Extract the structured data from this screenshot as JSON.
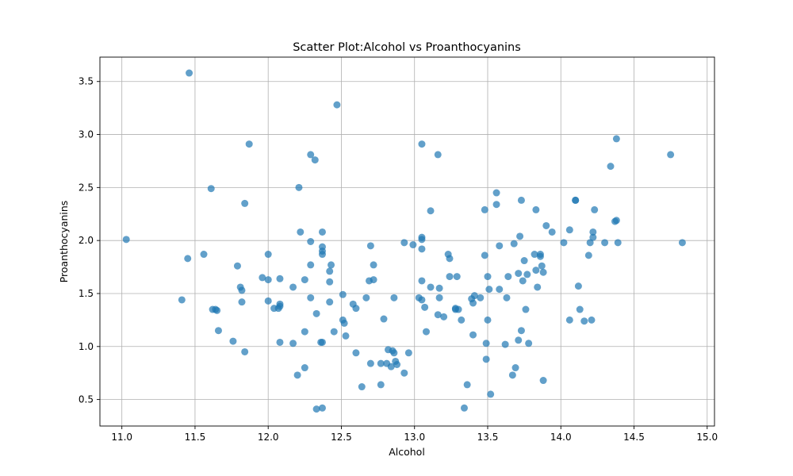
{
  "colors": {
    "marker": "#1f77b4",
    "grid": "#b0b0b0",
    "axes": "#000000"
  },
  "chart_data": {
    "type": "scatter",
    "title": "Scatter Plot:Alcohol vs Proanthocyanins",
    "xlabel": "Alcohol",
    "ylabel": "Proanthocyanins",
    "xlim": [
      10.85,
      15.05
    ],
    "ylim": [
      0.25,
      3.73
    ],
    "grid": true,
    "xticks": [
      "11.0",
      "11.5",
      "12.0",
      "12.5",
      "13.0",
      "13.5",
      "14.0",
      "14.5",
      "15.0"
    ],
    "yticks": [
      "0.5",
      "1.0",
      "1.5",
      "2.0",
      "2.5",
      "3.0",
      "3.5"
    ],
    "series": [
      {
        "points": [
          [
            11.03,
            2.01
          ],
          [
            11.41,
            1.44
          ],
          [
            11.45,
            1.83
          ],
          [
            11.46,
            3.58
          ],
          [
            11.56,
            1.87
          ],
          [
            11.61,
            2.49
          ],
          [
            11.62,
            1.35
          ],
          [
            11.64,
            1.35
          ],
          [
            11.65,
            1.34
          ],
          [
            11.66,
            1.15
          ],
          [
            11.76,
            1.05
          ],
          [
            11.79,
            1.76
          ],
          [
            11.81,
            1.56
          ],
          [
            11.82,
            1.53
          ],
          [
            11.82,
            1.42
          ],
          [
            11.84,
            2.35
          ],
          [
            11.84,
            0.95
          ],
          [
            11.87,
            2.91
          ],
          [
            11.96,
            1.65
          ],
          [
            12.0,
            1.87
          ],
          [
            12.0,
            1.63
          ],
          [
            12.0,
            1.43
          ],
          [
            12.04,
            1.36
          ],
          [
            12.07,
            1.36
          ],
          [
            12.08,
            1.38
          ],
          [
            12.08,
            1.4
          ],
          [
            12.08,
            1.64
          ],
          [
            12.08,
            1.04
          ],
          [
            12.17,
            1.56
          ],
          [
            12.17,
            1.03
          ],
          [
            12.2,
            0.73
          ],
          [
            12.21,
            2.5
          ],
          [
            12.22,
            2.08
          ],
          [
            12.25,
            1.63
          ],
          [
            12.25,
            1.14
          ],
          [
            12.25,
            0.8
          ],
          [
            12.29,
            2.81
          ],
          [
            12.29,
            1.99
          ],
          [
            12.29,
            1.77
          ],
          [
            12.29,
            1.46
          ],
          [
            12.32,
            2.76
          ],
          [
            12.33,
            1.31
          ],
          [
            12.33,
            0.41
          ],
          [
            12.36,
            1.04
          ],
          [
            12.37,
            1.04
          ],
          [
            12.37,
            0.42
          ],
          [
            12.37,
            2.08
          ],
          [
            12.37,
            1.94
          ],
          [
            12.37,
            1.9
          ],
          [
            12.37,
            1.87
          ],
          [
            12.42,
            1.71
          ],
          [
            12.42,
            1.61
          ],
          [
            12.42,
            1.42
          ],
          [
            12.43,
            1.77
          ],
          [
            12.45,
            1.14
          ],
          [
            12.47,
            3.28
          ],
          [
            12.51,
            1.49
          ],
          [
            12.51,
            1.25
          ],
          [
            12.52,
            1.22
          ],
          [
            12.53,
            1.1
          ],
          [
            12.58,
            1.4
          ],
          [
            12.6,
            1.36
          ],
          [
            12.6,
            0.94
          ],
          [
            12.64,
            0.62
          ],
          [
            12.67,
            1.46
          ],
          [
            12.69,
            1.62
          ],
          [
            12.7,
            1.95
          ],
          [
            12.7,
            0.84
          ],
          [
            12.72,
            1.77
          ],
          [
            12.72,
            1.63
          ],
          [
            12.77,
            0.84
          ],
          [
            12.77,
            0.64
          ],
          [
            12.79,
            1.26
          ],
          [
            12.81,
            0.84
          ],
          [
            12.82,
            0.97
          ],
          [
            12.84,
            0.81
          ],
          [
            12.85,
            0.96
          ],
          [
            12.86,
            1.46
          ],
          [
            12.86,
            0.94
          ],
          [
            12.87,
            0.86
          ],
          [
            12.88,
            0.83
          ],
          [
            12.93,
            1.98
          ],
          [
            12.93,
            0.75
          ],
          [
            12.96,
            0.94
          ],
          [
            12.99,
            1.96
          ],
          [
            13.03,
            1.46
          ],
          [
            13.05,
            2.91
          ],
          [
            13.05,
            2.03
          ],
          [
            13.05,
            2.01
          ],
          [
            13.05,
            1.92
          ],
          [
            13.05,
            1.62
          ],
          [
            13.05,
            1.44
          ],
          [
            13.07,
            1.37
          ],
          [
            13.08,
            1.14
          ],
          [
            13.11,
            2.28
          ],
          [
            13.11,
            1.56
          ],
          [
            13.16,
            2.81
          ],
          [
            13.16,
            1.3
          ],
          [
            13.17,
            1.55
          ],
          [
            13.17,
            1.46
          ],
          [
            13.2,
            1.28
          ],
          [
            13.23,
            1.87
          ],
          [
            13.24,
            1.83
          ],
          [
            13.24,
            1.66
          ],
          [
            13.28,
            1.36
          ],
          [
            13.28,
            1.35
          ],
          [
            13.29,
            1.66
          ],
          [
            13.3,
            1.35
          ],
          [
            13.32,
            1.25
          ],
          [
            13.34,
            0.42
          ],
          [
            13.36,
            0.64
          ],
          [
            13.39,
            1.45
          ],
          [
            13.4,
            1.41
          ],
          [
            13.4,
            1.11
          ],
          [
            13.41,
            1.48
          ],
          [
            13.45,
            1.46
          ],
          [
            13.48,
            2.29
          ],
          [
            13.48,
            1.86
          ],
          [
            13.49,
            1.03
          ],
          [
            13.49,
            0.88
          ],
          [
            13.5,
            1.66
          ],
          [
            13.5,
            1.25
          ],
          [
            13.51,
            1.54
          ],
          [
            13.52,
            0.55
          ],
          [
            13.56,
            2.45
          ],
          [
            13.56,
            2.34
          ],
          [
            13.58,
            1.95
          ],
          [
            13.58,
            1.54
          ],
          [
            13.62,
            1.02
          ],
          [
            13.63,
            1.46
          ],
          [
            13.64,
            1.66
          ],
          [
            13.67,
            0.73
          ],
          [
            13.68,
            1.97
          ],
          [
            13.69,
            0.8
          ],
          [
            13.71,
            1.06
          ],
          [
            13.71,
            1.69
          ],
          [
            13.72,
            2.04
          ],
          [
            13.73,
            2.38
          ],
          [
            13.73,
            1.15
          ],
          [
            13.74,
            1.62
          ],
          [
            13.75,
            1.81
          ],
          [
            13.76,
            1.35
          ],
          [
            13.77,
            1.68
          ],
          [
            13.78,
            1.03
          ],
          [
            13.82,
            1.87
          ],
          [
            13.83,
            2.29
          ],
          [
            13.83,
            1.72
          ],
          [
            13.84,
            1.56
          ],
          [
            13.86,
            1.85
          ],
          [
            13.86,
            1.87
          ],
          [
            13.87,
            1.76
          ],
          [
            13.88,
            1.7
          ],
          [
            13.88,
            0.68
          ],
          [
            13.9,
            2.14
          ],
          [
            13.94,
            2.08
          ],
          [
            14.02,
            1.98
          ],
          [
            14.06,
            2.1
          ],
          [
            14.06,
            1.25
          ],
          [
            14.1,
            2.38
          ],
          [
            14.1,
            2.38
          ],
          [
            14.12,
            1.57
          ],
          [
            14.13,
            1.35
          ],
          [
            14.16,
            1.24
          ],
          [
            14.19,
            1.86
          ],
          [
            14.2,
            1.98
          ],
          [
            14.21,
            1.25
          ],
          [
            14.22,
            2.03
          ],
          [
            14.22,
            2.08
          ],
          [
            14.23,
            2.29
          ],
          [
            14.3,
            1.98
          ],
          [
            14.34,
            2.7
          ],
          [
            14.37,
            2.18
          ],
          [
            14.38,
            2.19
          ],
          [
            14.38,
            2.96
          ],
          [
            14.39,
            1.98
          ],
          [
            14.75,
            2.81
          ],
          [
            14.83,
            1.98
          ]
        ]
      }
    ]
  }
}
